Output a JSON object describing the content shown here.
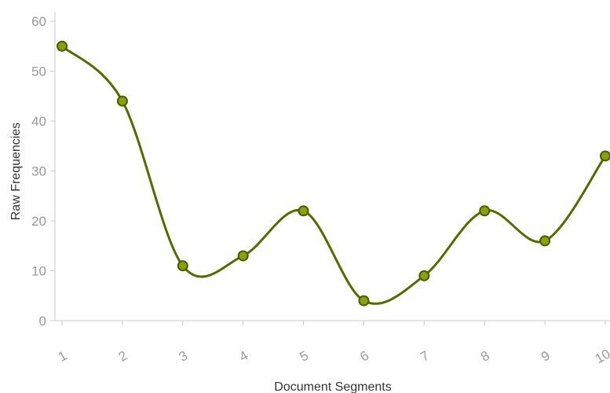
{
  "chart_data": {
    "type": "line",
    "title": "",
    "xlabel": "Document Segments",
    "ylabel": "Raw Frequencies",
    "categories": [
      "1",
      "2",
      "3",
      "4",
      "5",
      "6",
      "7",
      "8",
      "9",
      "10"
    ],
    "series": [
      {
        "values": [
          55,
          44,
          11,
          13,
          22,
          4,
          9,
          22,
          16,
          33
        ]
      }
    ],
    "ylim": [
      0,
      60
    ],
    "yticks": [
      "0",
      "10",
      "20",
      "30",
      "40",
      "50",
      "60"
    ],
    "grid": false,
    "legend": "none",
    "colors": {
      "line": "#556b00",
      "marker_fill": "#8aa10f",
      "marker_stroke": "#4a5c00",
      "axis": "#cccccc"
    }
  }
}
